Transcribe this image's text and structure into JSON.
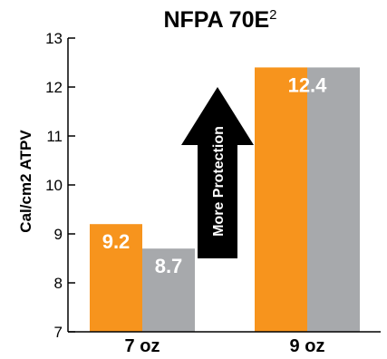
{
  "chart_data": {
    "type": "bar",
    "title": "NFPA 70E",
    "title_superscript": "2",
    "ylabel": "Cal/cm2 ATPV",
    "xlabel": "",
    "ylim": [
      7,
      13
    ],
    "yticks": [
      7,
      8,
      9,
      10,
      11,
      12,
      13
    ],
    "categories": [
      "7 oz",
      "9 oz"
    ],
    "series": [
      {
        "color": "#f7941d",
        "values": [
          9.2,
          12.4
        ]
      },
      {
        "color": "#a7a9ac",
        "values": [
          8.7,
          12.4
        ]
      }
    ],
    "data_labels": [
      {
        "category": 0,
        "series": 0,
        "text": "9.2"
      },
      {
        "category": 0,
        "series": 1,
        "text": "8.7"
      },
      {
        "category": 1,
        "series": 0,
        "text": "12.4"
      }
    ],
    "annotation": {
      "text": "More Protection",
      "icon": "up-arrow-icon",
      "color": "#000000"
    },
    "grid": false,
    "legend": "none"
  }
}
